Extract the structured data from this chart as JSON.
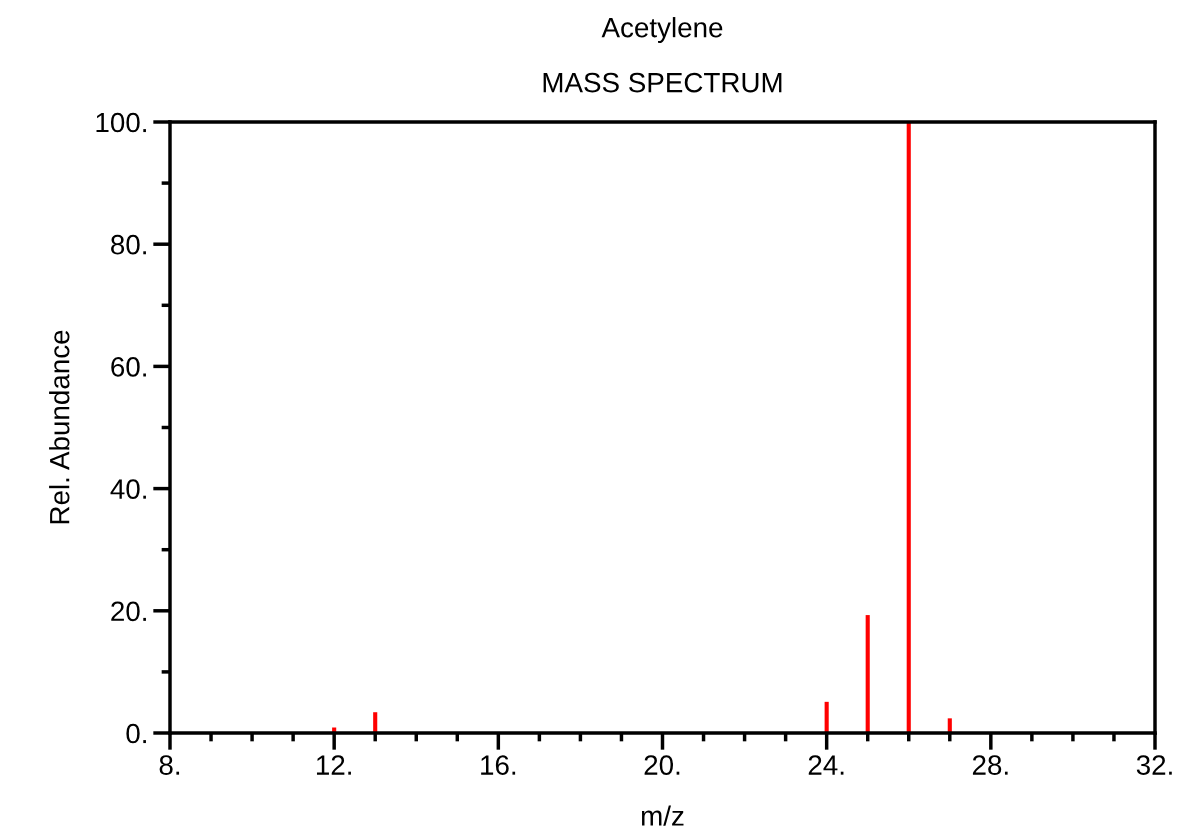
{
  "chart_data": {
    "type": "bar",
    "title": "Acetylene",
    "subtitle": "MASS SPECTRUM",
    "xlabel": "m/z",
    "ylabel": "Rel. Abundance",
    "x": [
      12,
      13,
      24,
      25,
      26,
      27
    ],
    "values": [
      0.9,
      3.4,
      5.1,
      19.3,
      100,
      2.4
    ],
    "color": "#ff0000",
    "xlim": [
      8,
      32
    ],
    "ylim": [
      0,
      100
    ],
    "xticks": [
      {
        "value": 8,
        "label": "8."
      },
      {
        "value": 9,
        "label": null
      },
      {
        "value": 10,
        "label": null
      },
      {
        "value": 11,
        "label": null
      },
      {
        "value": 12,
        "label": "12."
      },
      {
        "value": 13,
        "label": null
      },
      {
        "value": 14,
        "label": null
      },
      {
        "value": 15,
        "label": null
      },
      {
        "value": 16,
        "label": "16."
      },
      {
        "value": 17,
        "label": null
      },
      {
        "value": 18,
        "label": null
      },
      {
        "value": 19,
        "label": null
      },
      {
        "value": 20,
        "label": "20."
      },
      {
        "value": 21,
        "label": null
      },
      {
        "value": 22,
        "label": null
      },
      {
        "value": 23,
        "label": null
      },
      {
        "value": 24,
        "label": "24."
      },
      {
        "value": 25,
        "label": null
      },
      {
        "value": 26,
        "label": null
      },
      {
        "value": 27,
        "label": null
      },
      {
        "value": 28,
        "label": "28."
      },
      {
        "value": 29,
        "label": null
      },
      {
        "value": 30,
        "label": null
      },
      {
        "value": 31,
        "label": null
      },
      {
        "value": 32,
        "label": "32."
      }
    ],
    "yticks": [
      {
        "value": 0,
        "label": "0."
      },
      {
        "value": 10,
        "label": null
      },
      {
        "value": 20,
        "label": "20."
      },
      {
        "value": 30,
        "label": null
      },
      {
        "value": 40,
        "label": "40."
      },
      {
        "value": 50,
        "label": null
      },
      {
        "value": 60,
        "label": "60."
      },
      {
        "value": 70,
        "label": null
      },
      {
        "value": 80,
        "label": "80."
      },
      {
        "value": 90,
        "label": null
      },
      {
        "value": 100,
        "label": "100."
      }
    ],
    "grid": false
  }
}
